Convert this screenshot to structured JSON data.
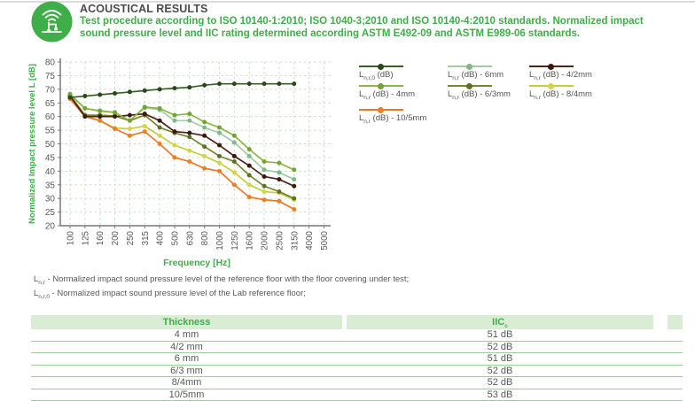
{
  "header": {
    "icon": "impact-sound-icon",
    "title": "ACOUSTICAL RESULTS",
    "description": "Test procedure according to ISO 10140-1:2010; ISO 1040-3;2010 and ISO 10140-4:2010 standards. Normalized impact sound pressure level and IIC rating determined according ASTM E492-09 and ASTM E989-06 standards."
  },
  "chart_data": {
    "type": "line",
    "title": "",
    "xlabel": "Frequency [Hz]",
    "ylabel": "Normalized Impact pressure level L [dB]",
    "ylim": [
      20,
      80
    ],
    "ytick_step": 5,
    "grid": true,
    "legend_position": "top-right",
    "categories": [
      "100",
      "125",
      "160",
      "200",
      "250",
      "315",
      "400",
      "500",
      "630",
      "800",
      "1000",
      "1250",
      "1600",
      "2000",
      "2500",
      "3150",
      "4000",
      "5000"
    ],
    "series": [
      {
        "name": "Ln,r,0 (dB)",
        "label_sub": "n,r,0",
        "label_rest": "(dB)",
        "color": "#3b5e26",
        "dot": "#274a18",
        "values": [
          67,
          67.5,
          68,
          68.5,
          69,
          69.5,
          70,
          70.4,
          70.7,
          71.5,
          72,
          72,
          72,
          72,
          72,
          72,
          null,
          null
        ]
      },
      {
        "name": "Ln,r (dB) - 6mm",
        "label_sub": "n,r",
        "label_rest": "(dB) - 6mm",
        "color": "#a4cba6",
        "dot": "#7fb989",
        "values": [
          68.3,
          63,
          62.2,
          61.5,
          58.5,
          63.2,
          62.5,
          58.5,
          58.5,
          56,
          54,
          50.5,
          45.5,
          40.5,
          39.5,
          37,
          null,
          null
        ]
      },
      {
        "name": "Ln,r (dB) - 4/2mm",
        "label_sub": "n,r",
        "label_rest": "(dB) - 4/2mm",
        "color": "#4c2418",
        "dot": "#3c190d",
        "values": [
          67.5,
          60,
          60,
          60,
          60.5,
          61,
          58.5,
          54.5,
          54,
          53,
          49.5,
          45.5,
          42,
          38,
          37,
          34.5,
          null,
          null
        ]
      },
      {
        "name": "Ln,r (dB) - 4mm",
        "label_sub": "n,r",
        "label_rest": "(dB) - 4mm",
        "color": "#8db642",
        "dot": "#74a335",
        "values": [
          68,
          63,
          62,
          61.5,
          58.5,
          63.5,
          63,
          60.5,
          61,
          58,
          56,
          53,
          48,
          43.5,
          43,
          40.5,
          null,
          null
        ]
      },
      {
        "name": "Ln,r (dB) - 6/3mm",
        "label_sub": "n,r",
        "label_rest": "(dB) - 6/3mm",
        "color": "#76862e",
        "dot": "#5e7026",
        "values": [
          67.8,
          60.5,
          60.5,
          60.2,
          58.5,
          60.5,
          56,
          54,
          52.5,
          49,
          45.5,
          43.5,
          38.5,
          34.5,
          32.5,
          30,
          null,
          null
        ]
      },
      {
        "name": "Ln,r (dB) - 8/4mm",
        "label_sub": "n,r",
        "label_rest": "(dB) - 8/4mm",
        "color": "#c6cd3a",
        "dot": "#d0d545",
        "values": [
          67.2,
          60.5,
          58.5,
          55.8,
          55.5,
          56.5,
          53,
          49.5,
          47.5,
          45.5,
          43,
          39.5,
          35,
          32.5,
          32,
          29.5,
          null,
          null
        ]
      },
      {
        "name": "Ln,r (dB) - 10/5mm",
        "label_sub": "n,r",
        "label_rest": "(dB) - 10/5mm",
        "color": "#e8782a",
        "dot": "#ee7e20",
        "values": [
          66.5,
          60,
          58.5,
          55.5,
          53,
          54.5,
          50,
          45,
          43.5,
          41,
          40,
          35,
          30.5,
          29.5,
          29,
          26,
          null,
          null
        ]
      }
    ]
  },
  "footnotes": [
    {
      "symbol": "L",
      "sub": "n,r",
      "text": "- Normalized impact sound pressure level of the reference floor with the floor covering under test;"
    },
    {
      "symbol": "L",
      "sub": "n,r,0",
      "text": "- Normalized impact sound pressure level of the Lab reference floor;"
    }
  ],
  "table": {
    "col1_header": "Thickness",
    "col2_header": "IIC",
    "col2_header_sub": "c",
    "rows": [
      {
        "thickness": "4 mm",
        "iic": "51 dB"
      },
      {
        "thickness": "4/2 mm",
        "iic": "52 dB"
      },
      {
        "thickness": "6 mm",
        "iic": "51 dB"
      },
      {
        "thickness": "6/3 mm",
        "iic": "52 dB"
      },
      {
        "thickness": "8/4mm",
        "iic": "52 dB"
      },
      {
        "thickness": "10/5mm",
        "iic": "53 dB"
      }
    ]
  },
  "colors": {
    "brand_green": "#3fae49",
    "title_text": "#4c4c4e",
    "body_text": "#58595b",
    "grid": "#cbdfca",
    "axis": "#77787a",
    "tick_text": "#58595b",
    "table_header_bg": "#d9ecd4",
    "table_row_line": "#9fcb9f"
  }
}
